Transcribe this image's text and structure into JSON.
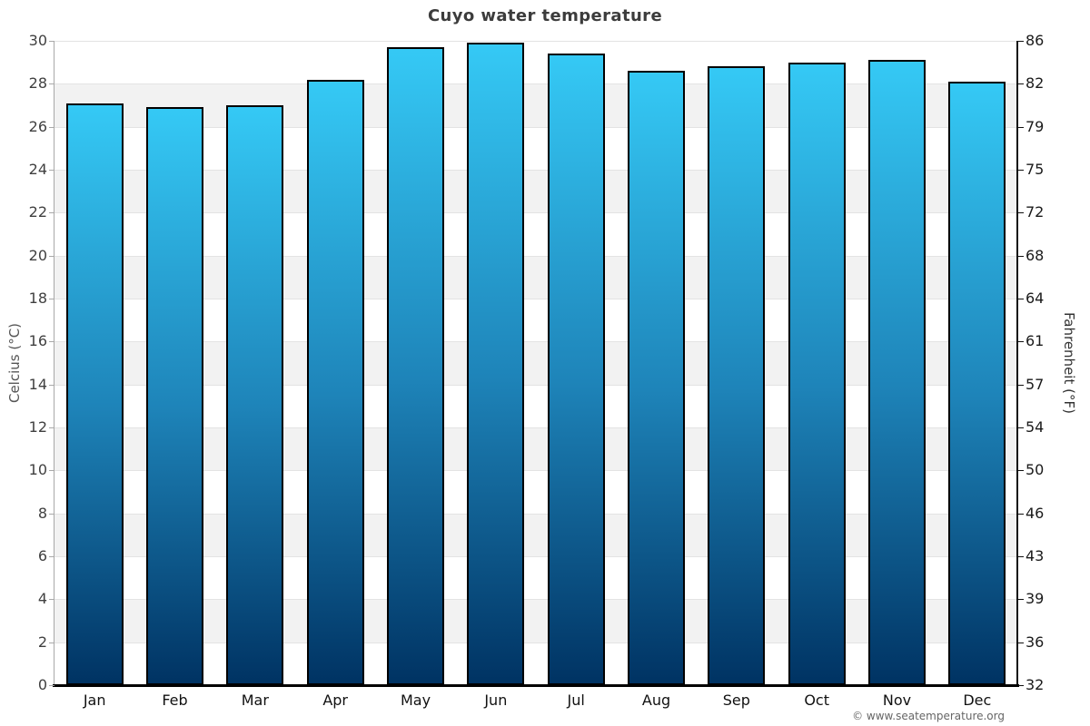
{
  "title": "Cuyo water temperature",
  "copyright": "© www.seatemperature.org",
  "chart_data": {
    "type": "bar",
    "title": "Cuyo water temperature",
    "categories": [
      "Jan",
      "Feb",
      "Mar",
      "Apr",
      "May",
      "Jun",
      "Jul",
      "Aug",
      "Sep",
      "Oct",
      "Nov",
      "Dec"
    ],
    "series": [
      {
        "name": "Water temperature",
        "unit": "°C",
        "values": [
          27.1,
          26.9,
          27.0,
          28.2,
          29.7,
          29.9,
          29.4,
          28.6,
          28.8,
          29.0,
          29.1,
          28.1
        ]
      }
    ],
    "ylabel_left": "Celcius (°C)",
    "ylabel_right": "Fahrenheit (°F)",
    "ylim_celsius": [
      0,
      30
    ],
    "yticks_celsius": [
      0,
      2,
      4,
      6,
      8,
      10,
      12,
      14,
      16,
      18,
      20,
      22,
      24,
      26,
      28,
      30
    ],
    "yticks_fahrenheit_labels": [
      "32",
      "36",
      "39",
      "43",
      "46",
      "50",
      "54",
      "57",
      "61",
      "64",
      "68",
      "72",
      "75",
      "79",
      "82",
      "86"
    ],
    "grid": true,
    "legend": "none",
    "colors": {
      "bar_gradient_top": "#35c9f5",
      "bar_gradient_mid": "#1e84b9",
      "bar_gradient_bottom": "#003363",
      "bar_border": "#000000",
      "band_alternate": "#f2f2f2",
      "band_base": "#ffffff",
      "gridline": "#e3e3e3",
      "bottom_axis": "#000000",
      "title_color": "#3c3c3c"
    }
  }
}
